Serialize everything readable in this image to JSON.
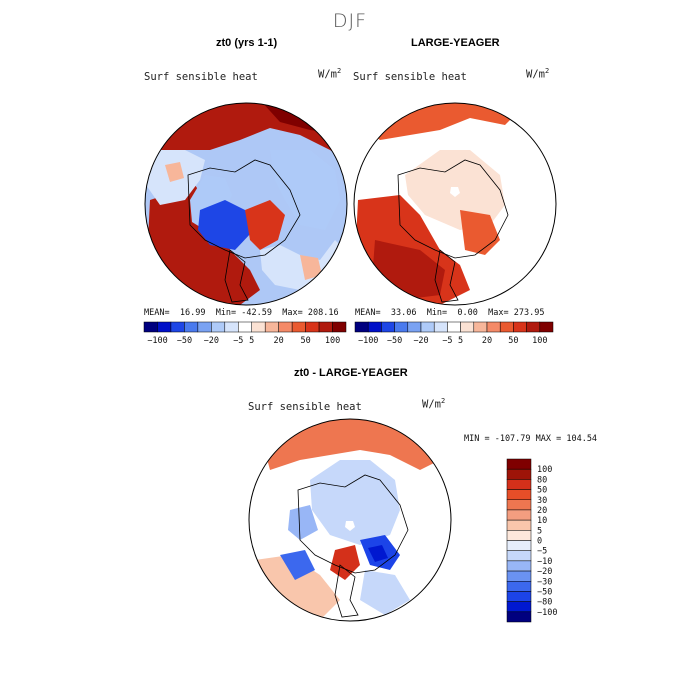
{
  "suptitle": "DJF",
  "colors": {
    "land": "#ffffff",
    "coast": "#000000",
    "abs_scale": [
      "#00007f",
      "#0010c8",
      "#1e46e6",
      "#4a7aee",
      "#7aa2f2",
      "#aecaf8",
      "#d6e4fb",
      "#fbe2d4",
      "#f7b69a",
      "#f48a68",
      "#ea5a30",
      "#d8341a",
      "#b01a0e",
      "#7f0000"
    ],
    "diff_scale": [
      "#00007f",
      "#0018d0",
      "#1c44e8",
      "#3c68ee",
      "#6a92f2",
      "#98b6f6",
      "#c6d8fa",
      "#e6eefc",
      "#fde8dc",
      "#f9c6ac",
      "#f49e80",
      "#ee7650",
      "#e64e28",
      "#d4301a",
      "#9e1408",
      "#7f0000"
    ]
  },
  "chart_data": [
    {
      "type": "heatmap",
      "projection": "north-polar-stereographic",
      "title": "zt0 (yrs 1-1)",
      "variable": "Surf sensible heat",
      "units": "W/m",
      "units_exp": "2",
      "stats": {
        "mean_label": "MEAN=",
        "mean": "16.99",
        "min_label": "Min=",
        "min": "-42.59",
        "max_label": "Max=",
        "max": "208.16"
      },
      "colorbar": {
        "levels": [
          -100,
          -80,
          -50,
          -30,
          -20,
          -10,
          -5,
          5,
          10,
          20,
          30,
          50,
          80,
          100
        ],
        "tick_labels": [
          "-100",
          "-50",
          "-20",
          "-5",
          "5",
          "20",
          "50",
          "100"
        ]
      }
    },
    {
      "type": "heatmap",
      "projection": "north-polar-stereographic",
      "title": "LARGE-YEAGER",
      "variable": "Surf sensible heat",
      "units": "W/m",
      "units_exp": "2",
      "stats": {
        "mean_label": "MEAN=",
        "mean": "33.06",
        "min_label": "Min=",
        "min": "0.00",
        "max_label": "Max=",
        "max": "273.95"
      },
      "colorbar": {
        "levels": [
          -100,
          -80,
          -50,
          -30,
          -20,
          -10,
          -5,
          5,
          10,
          20,
          30,
          50,
          80,
          100
        ],
        "tick_labels": [
          "-100",
          "-50",
          "-20",
          "-5",
          "5",
          "20",
          "50",
          "100"
        ]
      }
    },
    {
      "type": "heatmap",
      "projection": "north-polar-stereographic",
      "title": "zt0 - LARGE-YEAGER",
      "variable": "Surf sensible heat",
      "units": "W/m",
      "units_exp": "2",
      "stats": {
        "text": "MIN = -107.79 MAX = 104.54"
      },
      "colorbar": {
        "levels": [
          100,
          80,
          50,
          30,
          20,
          10,
          5,
          0,
          -5,
          -10,
          -20,
          -30,
          -50,
          -80,
          -100
        ],
        "tick_labels": [
          "100",
          "80",
          "50",
          "30",
          "20",
          "10",
          "5",
          "0",
          "-5",
          "-10",
          "-20",
          "-30",
          "-50",
          "-80",
          "-100"
        ]
      }
    }
  ]
}
